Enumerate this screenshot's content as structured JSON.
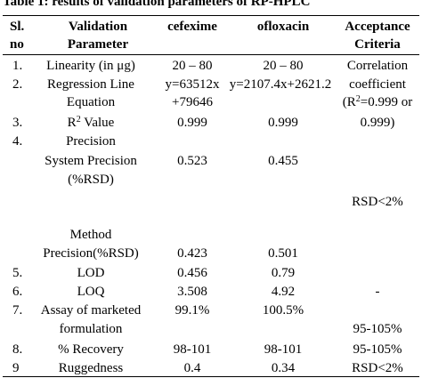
{
  "caption": "Table 1: results of validation parameters of RP-HPLC",
  "headers": {
    "sl_line1": "Sl.",
    "sl_line2": "no",
    "param_line1": "Validation",
    "param_line2": "Parameter",
    "cefexime": "cefexime",
    "ofloxacin": "ofloxacin",
    "accept_line1": "Acceptance",
    "accept_line2": "Criteria"
  },
  "rows": [
    {
      "sl": "1.",
      "param": "Linearity (in μg)",
      "cef": "20 – 80",
      "oflox": "20 – 80",
      "accept": "Correlation"
    },
    {
      "sl": "2.",
      "param_line1": "Regression Line",
      "param_line2": "Equation",
      "cef_line1": "y=63512x",
      "cef_line2": "+79646",
      "oflox": "y=2107.4x+2621.2",
      "accept_line1": "coefficient",
      "accept_line2_pre": "(R",
      "accept_line2_sup": "2",
      "accept_line2_post": "=0.999 or"
    },
    {
      "sl": "3.",
      "param_pre": "R",
      "param_sup": "2",
      "param_post": " Value",
      "cef": "0.999",
      "oflox": "0.999",
      "accept": "0.999)"
    },
    {
      "sl": "4.",
      "param": "Precision"
    },
    {
      "param_line1": "System Precision",
      "param_line2": "(%RSD)",
      "cef": "0.523",
      "oflox": "0.455"
    },
    {
      "accept": "RSD<2%"
    },
    {
      "param_line1": "Method",
      "param_line2": "Precision(%RSD)",
      "cef": "0.423",
      "oflox": "0.501"
    },
    {
      "sl": "5.",
      "param": "LOD",
      "cef": "0.456",
      "oflox": "0.79"
    },
    {
      "sl": "6.",
      "param": "LOQ",
      "cef": "3.508",
      "oflox": "4.92",
      "accept": "-"
    },
    {
      "sl": "7.",
      "param_line1": "Assay of marketed",
      "param_line2": "formulation",
      "cef": "99.1%",
      "oflox": "100.5%",
      "accept": "95-105%"
    },
    {
      "sl": "8.",
      "param": "% Recovery",
      "cef": "98-101",
      "oflox": "98-101",
      "accept": "95-105%"
    },
    {
      "sl": "9",
      "param": "Ruggedness",
      "cef": "0.4",
      "oflox": "0.34",
      "accept": "RSD<2%"
    }
  ]
}
